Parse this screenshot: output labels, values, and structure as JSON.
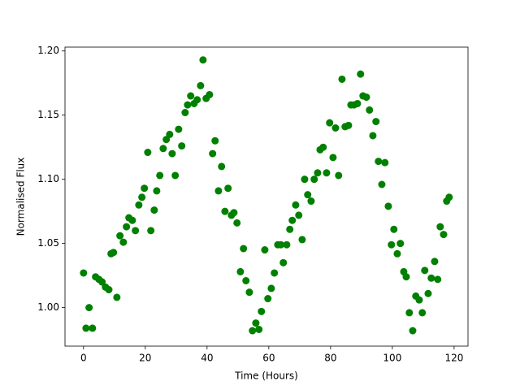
{
  "chart_data": {
    "type": "scatter",
    "xlabel": "Time (Hours)",
    "ylabel": "Normalised Flux",
    "color": "#008000",
    "x": [
      0,
      0.8,
      1.8,
      2.9,
      3.9,
      5,
      6,
      7.1,
      8.2,
      8.9,
      9.7,
      10.8,
      11.8,
      12.9,
      13.9,
      14.7,
      15.8,
      16.8,
      17.9,
      18.9,
      19.7,
      20.8,
      21.8,
      22.9,
      23.7,
      24.7,
      25.8,
      26.8,
      27.9,
      28.7,
      29.7,
      30.8,
      31.8,
      32.9,
      33.7,
      34.7,
      35.8,
      36.8,
      37.9,
      38.7,
      39.7,
      40.8,
      41.8,
      42.6,
      43.7,
      44.7,
      45.8,
      46.8,
      47.9,
      48.7,
      49.7,
      50.8,
      51.8,
      52.6,
      53.7,
      54.7,
      55.8,
      56.8,
      57.6,
      58.7,
      59.7,
      60.8,
      61.8,
      62.9,
      63.9,
      64.7,
      65.8,
      66.8,
      67.6,
      68.7,
      69.7,
      70.8,
      71.6,
      72.6,
      73.7,
      74.7,
      75.8,
      76.6,
      77.6,
      78.7,
      79.7,
      80.8,
      81.6,
      82.6,
      83.7,
      84.7,
      85.8,
      86.6,
      87.6,
      88.7,
      89.7,
      90.5,
      91.6,
      92.6,
      93.7,
      94.7,
      95.5,
      96.6,
      97.6,
      98.7,
      99.7,
      100.5,
      101.6,
      102.6,
      103.7,
      104.5,
      105.5,
      106.6,
      107.6,
      108.7,
      109.7,
      110.5,
      111.6,
      112.6,
      113.7,
      114.7,
      115.5,
      116.6,
      117.6,
      118.4
    ],
    "values": [
      1.027,
      0.984,
      1.0,
      0.984,
      1.024,
      1.022,
      1.02,
      1.016,
      1.014,
      1.042,
      1.043,
      1.008,
      1.056,
      1.051,
      1.063,
      1.07,
      1.068,
      1.06,
      1.08,
      1.086,
      1.093,
      1.121,
      1.06,
      1.076,
      1.091,
      1.103,
      1.124,
      1.131,
      1.135,
      1.12,
      1.103,
      1.139,
      1.126,
      1.152,
      1.158,
      1.165,
      1.159,
      1.162,
      1.173,
      1.193,
      1.163,
      1.166,
      1.12,
      1.13,
      1.091,
      1.11,
      1.075,
      1.093,
      1.072,
      1.074,
      1.066,
      1.028,
      1.046,
      1.021,
      1.012,
      0.982,
      0.988,
      0.983,
      0.997,
      1.045,
      1.007,
      1.015,
      1.027,
      1.049,
      1.049,
      1.035,
      1.049,
      1.061,
      1.068,
      1.08,
      1.072,
      1.053,
      1.1,
      1.088,
      1.083,
      1.1,
      1.105,
      1.123,
      1.125,
      1.105,
      1.144,
      1.117,
      1.14,
      1.103,
      1.178,
      1.141,
      1.142,
      1.158,
      1.158,
      1.159,
      1.182,
      1.165,
      1.164,
      1.154,
      1.134,
      1.145,
      1.114,
      1.096,
      1.113,
      1.079,
      1.049,
      1.061,
      1.042,
      1.05,
      1.028,
      1.024,
      0.996,
      0.982,
      1.009,
      1.006,
      0.996,
      1.029,
      1.011,
      1.023,
      1.036,
      1.022,
      1.063,
      1.057,
      1.083,
      1.086
    ],
    "xlim": [
      -6,
      124.5
    ],
    "ylim": [
      0.97,
      1.203
    ],
    "xticks": [
      0,
      20,
      40,
      60,
      80,
      100,
      120
    ],
    "yticks": [
      {
        "value": 1,
        "label": "1.00"
      },
      1.05,
      {
        "value": 1.1,
        "label": "1.10"
      },
      1.15,
      {
        "value": 1.2,
        "label": "1.20"
      }
    ]
  }
}
